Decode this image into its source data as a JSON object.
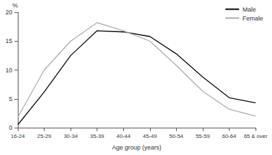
{
  "chart_data": {
    "type": "line",
    "x_label": "Age group (years)",
    "y_label": "%",
    "categories": [
      "16-24",
      "25-29",
      "30-34",
      "35-39",
      "40-44",
      "45-49",
      "50-54",
      "55-59",
      "60-64",
      "65 & over"
    ],
    "series": [
      {
        "name": "Male",
        "color": "#000000",
        "values": [
          0.5,
          6.2,
          12.5,
          16.8,
          16.6,
          15.8,
          12.8,
          8.8,
          5.2,
          4.3
        ]
      },
      {
        "name": "Female",
        "color": "#aaaaaa",
        "values": [
          1.8,
          10.0,
          15.0,
          18.2,
          16.8,
          15.0,
          10.8,
          6.3,
          3.2,
          2.0
        ]
      }
    ],
    "ylim": [
      0,
      20
    ],
    "yticks": [
      0,
      5,
      10,
      15,
      20
    ],
    "grid": false,
    "legend": "upper right"
  }
}
